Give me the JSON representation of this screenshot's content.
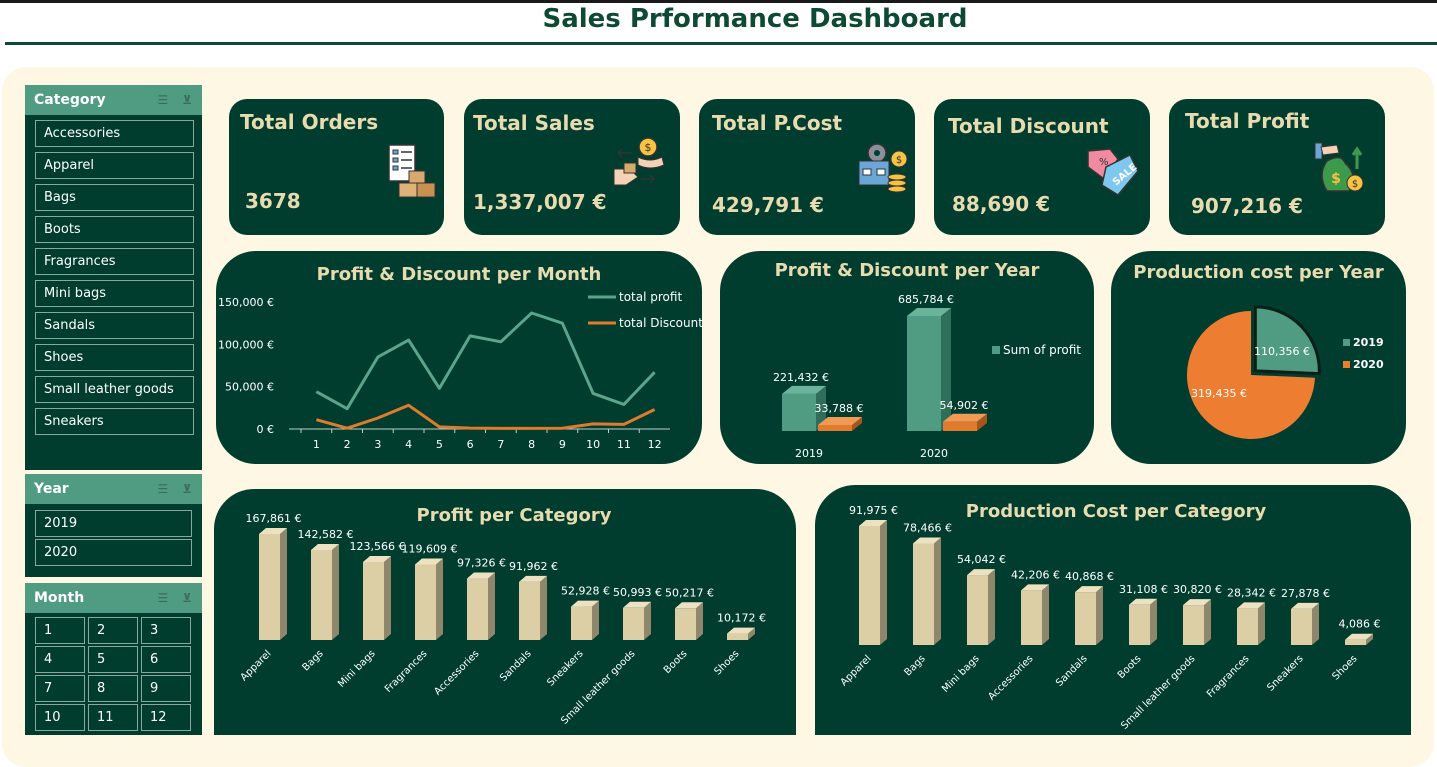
{
  "title": "Sales Prformance Dashboard",
  "slicers": {
    "category": {
      "label": "Category",
      "items": [
        "Accessories",
        "Apparel",
        "Bags",
        "Boots",
        "Fragrances",
        "Mini bags",
        "Sandals",
        "Shoes",
        "Small leather goods",
        "Sneakers"
      ]
    },
    "year": {
      "label": "Year",
      "items": [
        "2019",
        "2020"
      ]
    },
    "month": {
      "label": "Month",
      "items": [
        "1",
        "2",
        "3",
        "4",
        "5",
        "6",
        "7",
        "8",
        "9",
        "10",
        "11",
        "12"
      ]
    }
  },
  "kpis": {
    "orders": {
      "label": "Total Orders",
      "value": "3678",
      "icon": "checklist-boxes-icon"
    },
    "sales": {
      "label": "Total Sales",
      "value": "1,337,007 €",
      "icon": "money-exchange-icon"
    },
    "pcost": {
      "label": "Total P.Cost",
      "value": "429,791  €",
      "icon": "production-cost-icon"
    },
    "discount": {
      "label": "Total Discount",
      "value": "88,690 €",
      "icon": "sale-tag-icon"
    },
    "profit": {
      "label": "Total Profit",
      "value": "907,216 €",
      "icon": "money-bag-growth-icon"
    }
  },
  "colors": {
    "background": "#fdf7e4",
    "card": "#013d2e",
    "slicer_header": "#4f9c83",
    "profit_line": "#5aa58b",
    "discount_line": "#e07b2e",
    "bar_cream": "#dccfa6",
    "pie_2020": "#ed7d31",
    "pie_2019": "#4f9c83"
  },
  "chart_data": [
    {
      "type": "line",
      "title": "Profit & Discount per Month",
      "x": [
        1,
        2,
        3,
        4,
        5,
        6,
        7,
        8,
        9,
        10,
        11,
        12
      ],
      "series": [
        {
          "name": "total profit",
          "values": [
            44000,
            24000,
            85000,
            105000,
            48000,
            110000,
            103000,
            137000,
            125000,
            42000,
            29000,
            67000
          ]
        },
        {
          "name": "total Discount",
          "values": [
            11000,
            1000,
            13000,
            28000,
            2500,
            1000,
            800,
            700,
            900,
            6000,
            5500,
            23000
          ]
        }
      ],
      "ylim": [
        0,
        150000
      ],
      "yticks": [
        "0 €",
        "50,000 €",
        "100,000 €",
        "150,000 €"
      ],
      "legend": "top-right"
    },
    {
      "type": "bar",
      "title": "Profit & Discount per Year",
      "categories": [
        "2019",
        "2020"
      ],
      "series": [
        {
          "name": "Sum of profit",
          "values": [
            221432,
            685784
          ],
          "labels": [
            "221,432 €",
            "685,784 €"
          ]
        },
        {
          "values": [
            33788,
            54902
          ],
          "labels": [
            "33,788 €",
            "54,902 €"
          ]
        }
      ],
      "legend": "right"
    },
    {
      "type": "pie",
      "title": "Production cost per Year",
      "categories": [
        "2019",
        "2020"
      ],
      "values": [
        110356,
        319435
      ],
      "labels": [
        "110,356 €",
        "319,435 €"
      ],
      "legend": "right"
    },
    {
      "type": "bar",
      "title": "Profit per Category",
      "categories": [
        "Apparel",
        "Bags",
        "Mini bags",
        "Fragrances",
        "Accessories",
        "Sandals",
        "Sneakers",
        "Small leather goods",
        "Boots",
        "Shoes"
      ],
      "values": [
        167861,
        142582,
        123566,
        119609,
        97326,
        91962,
        52928,
        50993,
        50217,
        10172
      ],
      "labels": [
        "167,861 €",
        "142,582 €",
        "123,566 €",
        "119,609 €",
        "97,326 €",
        "91,962 €",
        "52,928 €",
        "50,993 €",
        "50,217 €",
        "10,172 €"
      ]
    },
    {
      "type": "bar",
      "title": "Production Cost per Category",
      "categories": [
        "Apparel",
        "Bags",
        "Mini bags",
        "Accessories",
        "Sandals",
        "Boots",
        "Small leather goods",
        "Fragrances",
        "Sneakers",
        "Shoes"
      ],
      "values": [
        91975,
        78466,
        54042,
        42206,
        40868,
        31108,
        30820,
        28342,
        27878,
        4086
      ],
      "labels": [
        "91,975  €",
        "78,466  €",
        "54,042  €",
        "42,206  €",
        "40,868  €",
        "31,108  €",
        "30,820  €",
        "28,342  €",
        "27,878  €",
        "4,086  €"
      ]
    }
  ]
}
